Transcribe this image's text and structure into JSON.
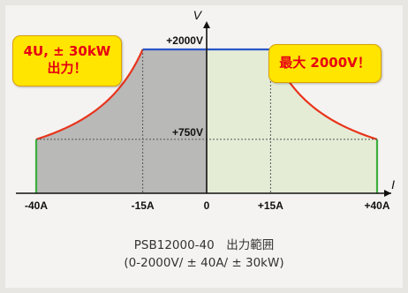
{
  "chart_data": {
    "type": "area",
    "y_axis_label": "V",
    "x_axis_label": "I",
    "y_tick_labels": [
      "+2000V",
      "+750V"
    ],
    "x_tick_labels": [
      "-40A",
      "-15A",
      "0",
      "+15A",
      "+40A"
    ],
    "x_range": [
      -40,
      40
    ],
    "y_range": [
      0,
      2000
    ],
    "region_left": {
      "current_range": [
        -40,
        0
      ],
      "fill": "#b9b9b8"
    },
    "region_right": {
      "current_range": [
        0,
        40
      ],
      "fill": "#e4ecd6"
    },
    "boundary_points": [
      {
        "current": -40,
        "voltage": 750
      },
      {
        "current": -15,
        "voltage": 2000
      },
      {
        "current": 15,
        "voltage": 2000
      },
      {
        "current": 40,
        "voltage": 750
      }
    ],
    "colors": {
      "power_curve": "#e8341c",
      "voltage_limit": "#2a55c8",
      "current_limit": "#3cae3c"
    }
  },
  "callout_left": {
    "line1": "4U, ± 30kW",
    "line2": "出力！"
  },
  "callout_right": {
    "text": "最大 2000V！"
  },
  "caption": {
    "line1": "PSB12000-40　出力範囲",
    "line2": "(0-2000V/ ± 40A/ ± 30kW)"
  }
}
